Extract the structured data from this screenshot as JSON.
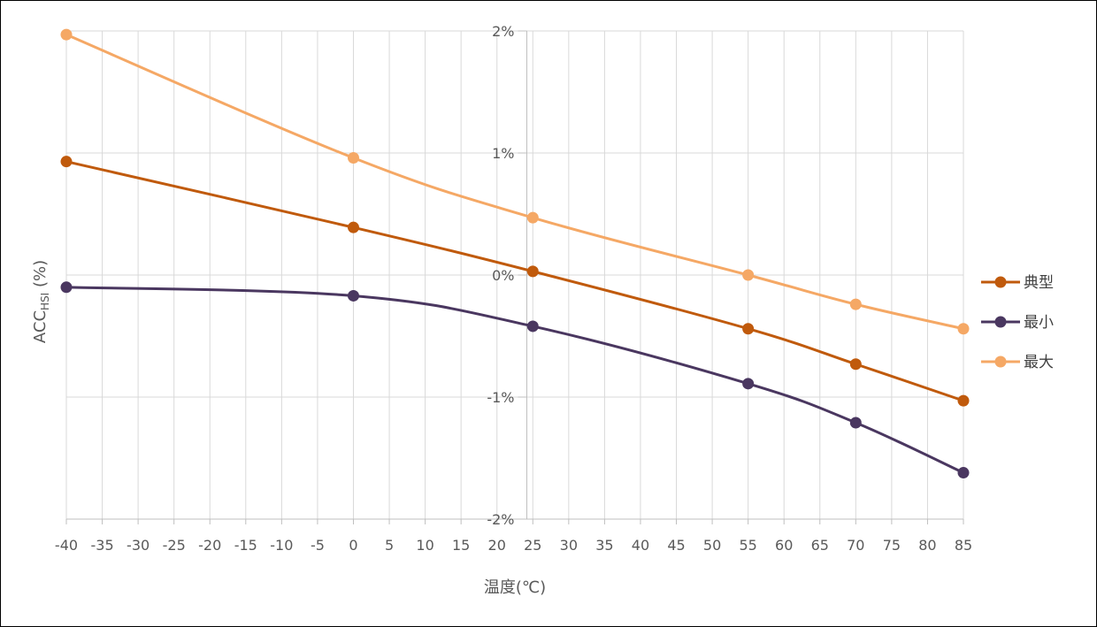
{
  "chart_data": {
    "type": "line",
    "title": "",
    "xlabel": "温度(℃)",
    "ylabel": "ACC",
    "ylabel_subscript": "HSI",
    "ylabel_suffix": " (%)",
    "x_ticks": [
      -40,
      -35,
      -30,
      -25,
      -20,
      -15,
      -10,
      -5,
      0,
      5,
      10,
      15,
      20,
      25,
      30,
      35,
      40,
      45,
      50,
      55,
      60,
      65,
      70,
      75,
      80,
      85
    ],
    "x_range": [
      -40,
      85
    ],
    "y_ticks": [
      {
        "value": 2,
        "label": "2%"
      },
      {
        "value": 1,
        "label": "1%"
      },
      {
        "value": 0,
        "label": "0%"
      },
      {
        "value": -1,
        "label": "-1%"
      },
      {
        "value": -2,
        "label": "-2%"
      }
    ],
    "ylim": [
      -2,
      2
    ],
    "grid": true,
    "legend_position": "right",
    "x": [
      -40,
      0,
      25,
      55,
      70,
      85
    ],
    "series": [
      {
        "name": "典型",
        "color": "#c05a0c",
        "values": [
          0.93,
          0.39,
          0.03,
          -0.44,
          -0.73,
          -1.03
        ]
      },
      {
        "name": "最小",
        "color": "#4a3760",
        "values": [
          -0.1,
          -0.17,
          -0.42,
          -0.89,
          -1.21,
          -1.62
        ]
      },
      {
        "name": "最大",
        "color": "#f5a865",
        "values": [
          1.97,
          0.96,
          0.47,
          0.0,
          -0.24,
          -0.44
        ]
      }
    ]
  },
  "colors": {
    "grid": "#d9d9d9",
    "axis": "#bfbfbf",
    "text": "#595959"
  }
}
